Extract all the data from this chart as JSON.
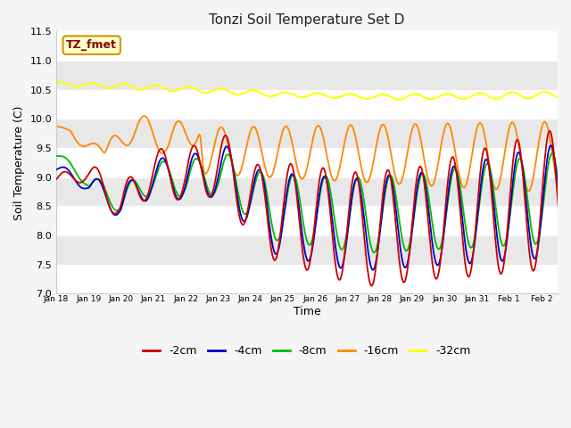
{
  "title": "Tonzi Soil Temperature Set D",
  "xlabel": "Time",
  "ylabel": "Soil Temperature (C)",
  "label_box_text": "TZ_fmet",
  "label_box_color": "#ffffcc",
  "label_box_text_color": "#880000",
  "ylim": [
    7.0,
    11.5
  ],
  "yticks": [
    7.0,
    7.5,
    8.0,
    8.5,
    9.0,
    9.5,
    10.0,
    10.5,
    11.0,
    11.5
  ],
  "bg_color": "#f5f5f5",
  "plot_bg_color": "#ffffff",
  "band_color": "#e8e8e8",
  "line_colors": {
    "-2cm": "#cc0000",
    "-4cm": "#0000cc",
    "-8cm": "#00bb00",
    "-16cm": "#ff8800",
    "-32cm": "#ffff00"
  },
  "legend_entries": [
    "-2cm",
    "-4cm",
    "-8cm",
    "-16cm",
    "-32cm"
  ],
  "xtick_labels": [
    "Jan 18",
    "Jan 19",
    "Jan 20",
    "Jan 21",
    "Jan 22",
    "Jan 23",
    "Jan 24",
    "Jan 25",
    "Jan 26",
    "Jan 27",
    "Jan 28",
    "Jan 29",
    "Jan 30",
    "Jan 31",
    "Feb 1",
    "Feb 2"
  ]
}
